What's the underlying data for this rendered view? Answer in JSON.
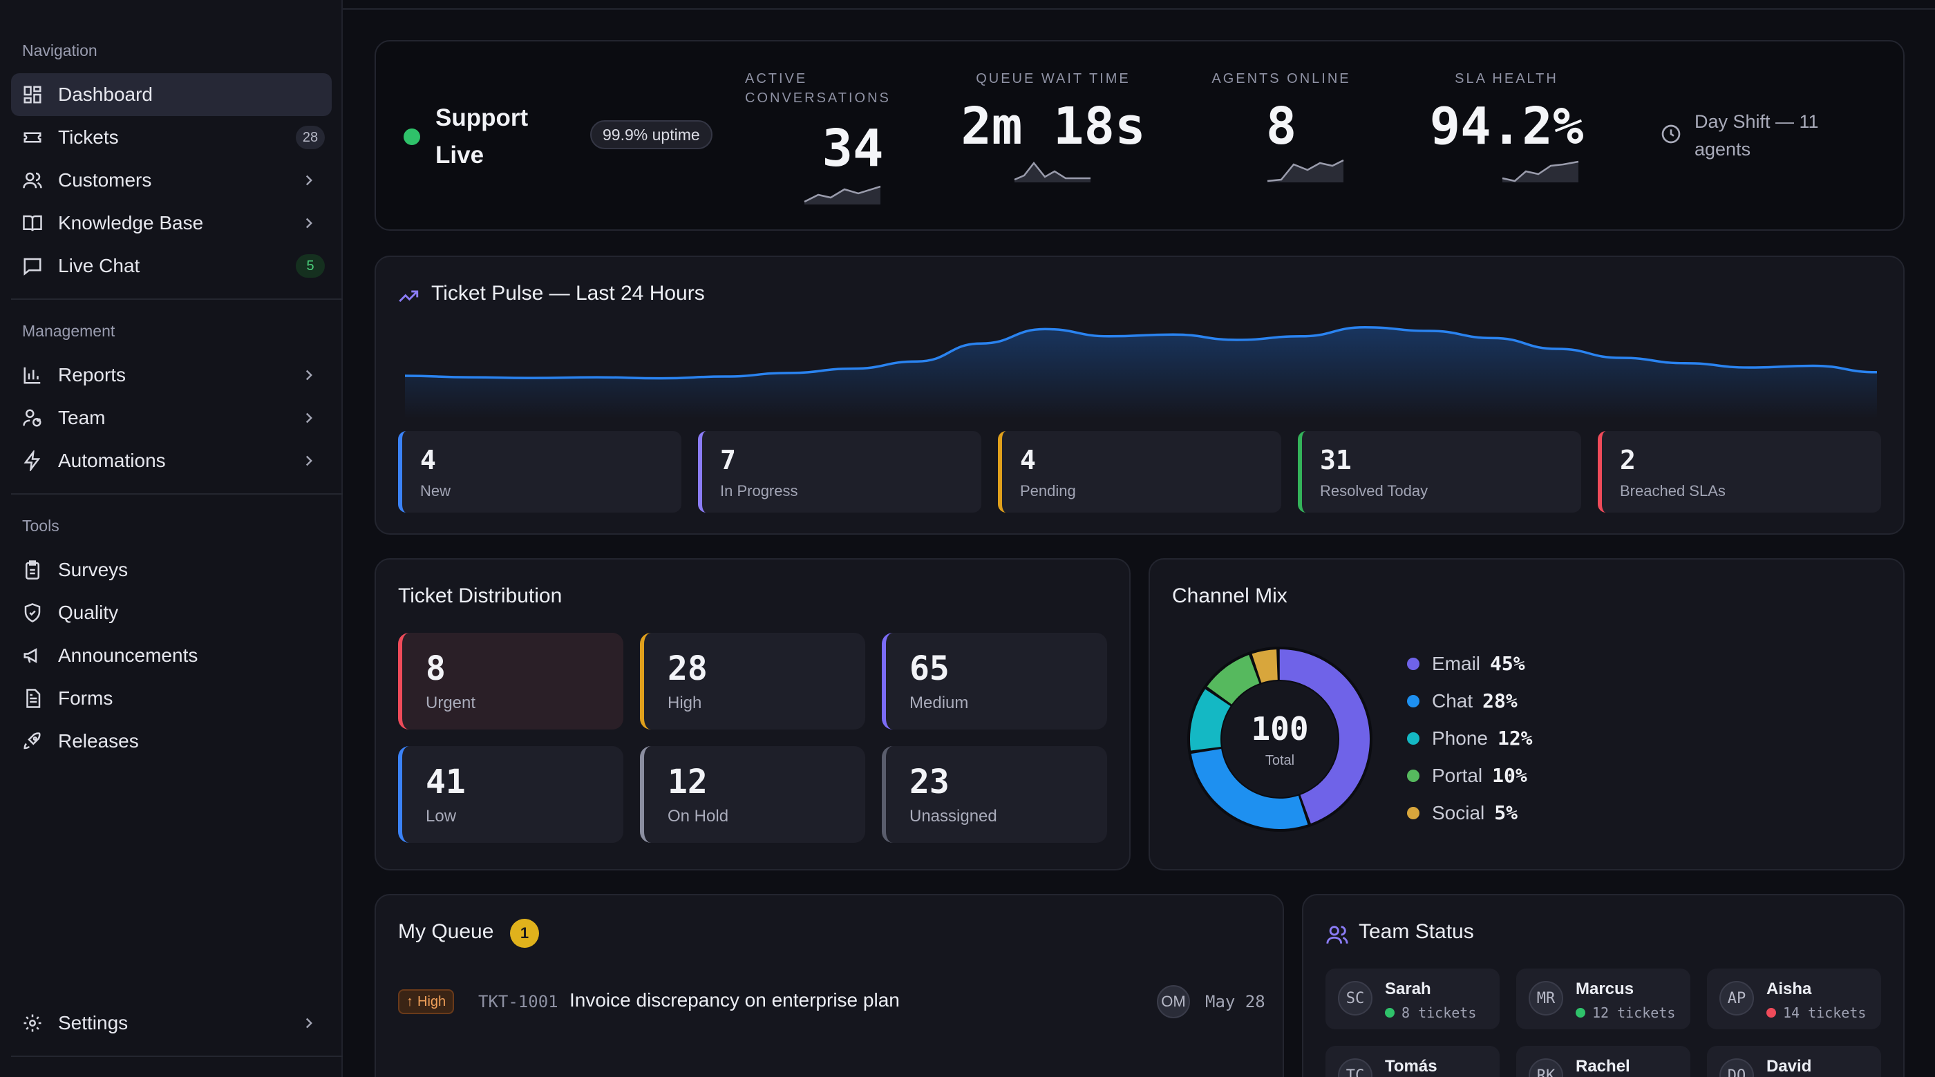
{
  "sidebar": {
    "sections": [
      {
        "title": "Navigation"
      },
      {
        "title": "Management"
      },
      {
        "title": "Tools"
      }
    ],
    "items": [
      {
        "label": "Dashboard",
        "icon": "dashboard-icon"
      },
      {
        "label": "Tickets",
        "icon": "ticket-icon",
        "badge": "28"
      },
      {
        "label": "Customers",
        "icon": "users-icon"
      },
      {
        "label": "Knowledge Base",
        "icon": "book-icon"
      },
      {
        "label": "Live Chat",
        "icon": "chat-icon",
        "badge": "5"
      },
      {
        "label": "Reports",
        "icon": "bar-chart-icon"
      },
      {
        "label": "Team",
        "icon": "team-icon"
      },
      {
        "label": "Automations",
        "icon": "bolt-icon"
      },
      {
        "label": "Surveys",
        "icon": "clipboard-icon"
      },
      {
        "label": "Quality",
        "icon": "shield-icon"
      },
      {
        "label": "Announcements",
        "icon": "megaphone-icon"
      },
      {
        "label": "Forms",
        "icon": "form-icon"
      },
      {
        "label": "Releases",
        "icon": "rocket-icon"
      },
      {
        "label": "Settings",
        "icon": "gear-icon"
      }
    ]
  },
  "header": {
    "title": "Support Live",
    "title_line1": "Support",
    "title_line2": "Live",
    "uptime": "99.9% uptime",
    "stats": [
      {
        "label_line1": "ACTIVE",
        "label_line2": "CONVERSATIONS",
        "value": "34"
      },
      {
        "label": "QUEUE WAIT TIME",
        "value": "2m 18s"
      },
      {
        "label": "AGENTS ONLINE",
        "value": "8"
      },
      {
        "label": "SLA HEALTH",
        "value": "94.2%"
      }
    ],
    "shift_line1": "Day Shift — 11",
    "shift_line2": "agents"
  },
  "pulse": {
    "title": "Ticket Pulse — Last 24 Hours",
    "stats": [
      {
        "value": "4",
        "label": "New",
        "color": "#3b82f6"
      },
      {
        "value": "7",
        "label": "In Progress",
        "color": "#8b7cf6"
      },
      {
        "value": "4",
        "label": "Pending",
        "color": "#e0a01c"
      },
      {
        "value": "31",
        "label": "Resolved Today",
        "color": "#34b35a"
      },
      {
        "value": "2",
        "label": "Breached SLAs",
        "color": "#ef4b5a"
      }
    ]
  },
  "distribution": {
    "title": "Ticket Distribution",
    "items": [
      {
        "value": "8",
        "label": "Urgent",
        "color": "#ef4b5a"
      },
      {
        "value": "28",
        "label": "High",
        "color": "#e0a01c"
      },
      {
        "value": "65",
        "label": "Medium",
        "color": "#7b6cf6"
      },
      {
        "value": "41",
        "label": "Low",
        "color": "#3b82f6"
      },
      {
        "value": "12",
        "label": "On Hold",
        "color": "#8b8ea0"
      },
      {
        "value": "23",
        "label": "Unassigned",
        "color": "#5a5d6c"
      }
    ]
  },
  "channel_mix": {
    "title": "Channel Mix",
    "total": "100",
    "total_label": "Total",
    "items": [
      {
        "name": "Email",
        "pct": "45%",
        "color": "#6f63e8"
      },
      {
        "name": "Chat",
        "pct": "28%",
        "color": "#1e90f0"
      },
      {
        "name": "Phone",
        "pct": "12%",
        "color": "#14b8c4"
      },
      {
        "name": "Portal",
        "pct": "10%",
        "color": "#56b95e"
      },
      {
        "name": "Social",
        "pct": "5%",
        "color": "#d8a63c"
      }
    ]
  },
  "queue": {
    "title": "My Queue",
    "count": "1",
    "tickets": [
      {
        "priority": "High",
        "id": "TKT-1001",
        "title": "Invoice discrepancy on enterprise plan",
        "assignee": "OM",
        "date": "May 28"
      }
    ]
  },
  "team": {
    "title": "Team Status",
    "members": [
      {
        "initials": "SC",
        "name": "Sarah",
        "status": "8 tickets",
        "color": "#2fc26a"
      },
      {
        "initials": "MR",
        "name": "Marcus",
        "status": "12 tickets",
        "color": "#2fc26a"
      },
      {
        "initials": "AP",
        "name": "Aisha",
        "status": "14 tickets",
        "color": "#ef4b5a"
      },
      {
        "initials": "TC",
        "name": "Tomás",
        "status": "",
        "color": "#2fc26a"
      },
      {
        "initials": "RK",
        "name": "Rachel",
        "status": "",
        "color": "#2fc26a"
      },
      {
        "initials": "DO",
        "name": "David",
        "status": "",
        "color": "#2fc26a"
      }
    ]
  },
  "chart_data": {
    "type": "area",
    "x": [
      0,
      1,
      2,
      3,
      4,
      5,
      6,
      7,
      8,
      9,
      10,
      11,
      12,
      13,
      14,
      15,
      16,
      17,
      18,
      19,
      20,
      21,
      22,
      23
    ],
    "series": [
      {
        "values": [
          10,
          9.6,
          9.4,
          9.6,
          9.3,
          9.8,
          10.8,
          12,
          14,
          19,
          23,
          21,
          21.5,
          20,
          21,
          23.5,
          22.5,
          20.5,
          17.5,
          15,
          13.5,
          12.3,
          12.8,
          11
        ]
      }
    ],
    "title": "Ticket Pulse — Last 24 Hours",
    "ylim": [
      0,
      25
    ]
  }
}
